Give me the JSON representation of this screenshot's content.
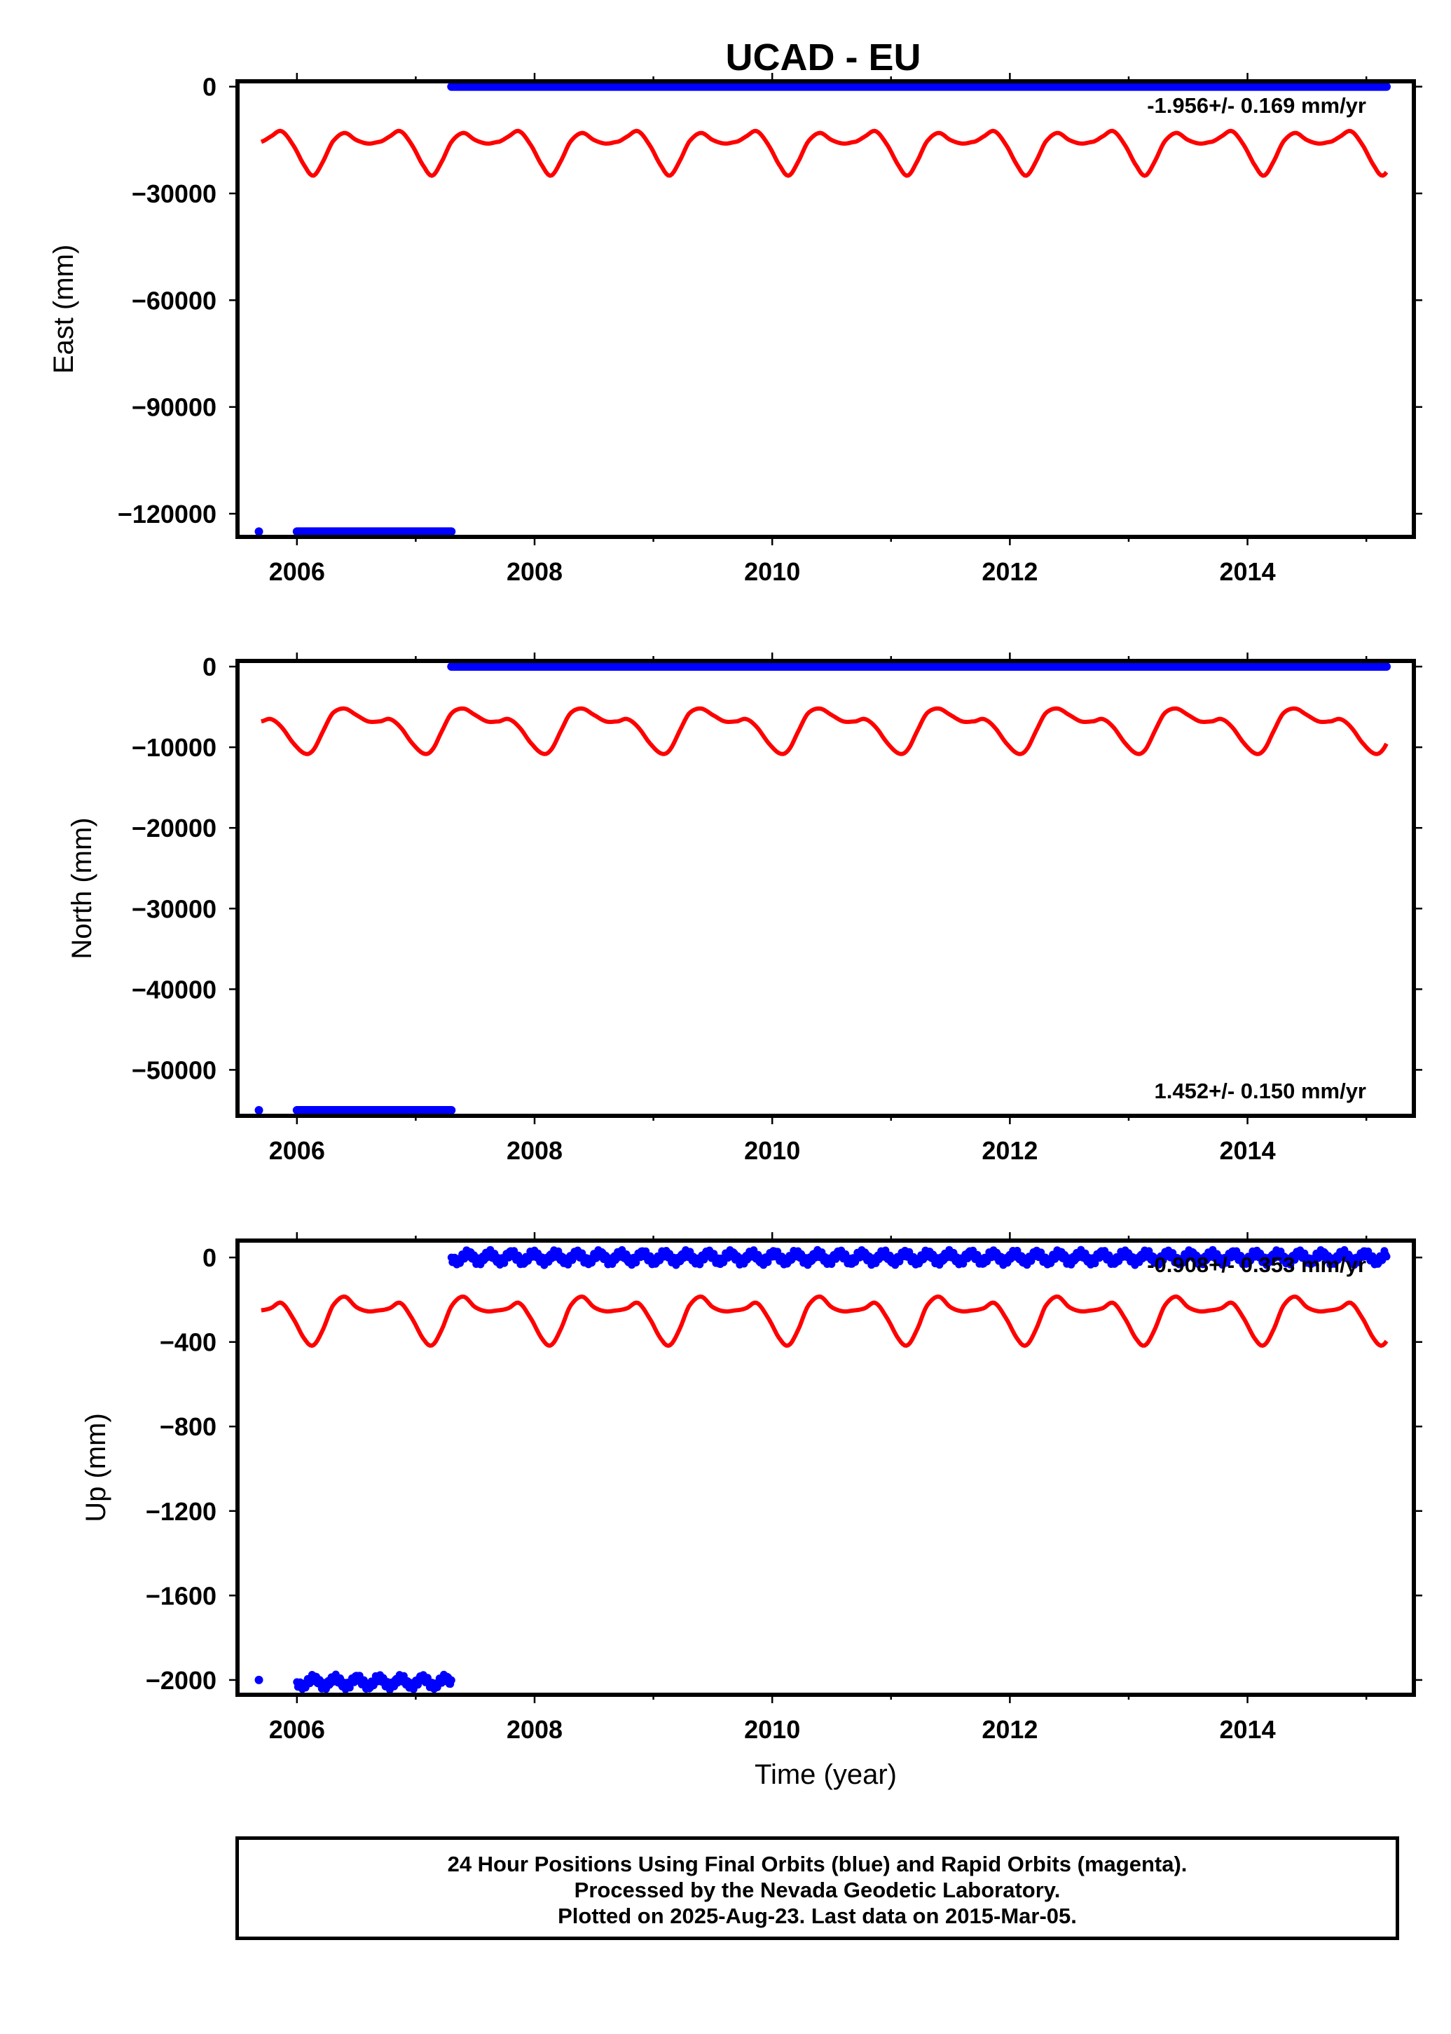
{
  "title": "UCAD - EU",
  "colors": {
    "final_orbits": "#0000ff",
    "model_fit": "#ff0000",
    "frame": "#000000"
  },
  "chart_data": [
    {
      "type": "scatter",
      "component": "East",
      "ylabel": "East (mm)",
      "xlabel": "",
      "xlim": [
        2005.5,
        2015.4
      ],
      "ylim": [
        -126500,
        1500
      ],
      "xticks": [
        2006,
        2008,
        2010,
        2012,
        2014
      ],
      "xtick_labels": [
        "2006",
        "2008",
        "2010",
        "2012",
        "2014"
      ],
      "yticks": [
        0,
        -30000,
        -60000,
        -90000,
        -120000
      ],
      "ytick_labels": [
        "0",
        "−30000",
        "−60000",
        "−90000",
        "−120000"
      ],
      "rate_text": "-1.956+/- 0.169 mm/yr",
      "rate_position": "top-right",
      "series": [
        {
          "segments": [
            {
              "x_start": 2005.68,
              "x_end": 2005.68,
              "y": -125000
            },
            {
              "x_start": 2006.0,
              "x_end": 2007.3,
              "y": -125000
            },
            {
              "x_start": 2007.3,
              "x_end": 2015.17,
              "y": 0
            }
          ]
        }
      ],
      "seasonal_model": {
        "x_start": 2005.7,
        "x_end": 2015.17,
        "phase_year": 2005.7,
        "points": [
          [
            0.0,
            -15500
          ],
          [
            0.08,
            -14000
          ],
          [
            0.17,
            -12500
          ],
          [
            0.27,
            -16500
          ],
          [
            0.37,
            -22500
          ],
          [
            0.44,
            -25000
          ],
          [
            0.52,
            -21000
          ],
          [
            0.6,
            -15500
          ],
          [
            0.7,
            -13000
          ],
          [
            0.8,
            -15000
          ],
          [
            0.9,
            -16000
          ],
          [
            1.0,
            -15500
          ]
        ]
      }
    },
    {
      "type": "scatter",
      "component": "North",
      "ylabel": "North (mm)",
      "xlabel": "",
      "xlim": [
        2005.5,
        2015.4
      ],
      "ylim": [
        -55700,
        700
      ],
      "xticks": [
        2006,
        2008,
        2010,
        2012,
        2014
      ],
      "xtick_labels": [
        "2006",
        "2008",
        "2010",
        "2012",
        "2014"
      ],
      "yticks": [
        0,
        -10000,
        -20000,
        -30000,
        -40000,
        -50000
      ],
      "ytick_labels": [
        "0",
        "−10000",
        "−20000",
        "−30000",
        "−40000",
        "−50000"
      ],
      "rate_text": "1.452+/- 0.150 mm/yr",
      "rate_position": "bottom-right",
      "series": [
        {
          "segments": [
            {
              "x_start": 2005.68,
              "x_end": 2005.68,
              "y": -55000
            },
            {
              "x_start": 2006.0,
              "x_end": 2007.3,
              "y": -55000
            },
            {
              "x_start": 2007.3,
              "x_end": 2015.17,
              "y": 0
            }
          ]
        }
      ],
      "seasonal_model": {
        "x_start": 2005.7,
        "x_end": 2015.17,
        "phase_year": 2005.7,
        "points": [
          [
            0.0,
            -6800
          ],
          [
            0.08,
            -6500
          ],
          [
            0.17,
            -7500
          ],
          [
            0.27,
            -9500
          ],
          [
            0.37,
            -10800
          ],
          [
            0.44,
            -10300
          ],
          [
            0.52,
            -8000
          ],
          [
            0.6,
            -5800
          ],
          [
            0.7,
            -5200
          ],
          [
            0.8,
            -6000
          ],
          [
            0.9,
            -6800
          ],
          [
            1.0,
            -6800
          ]
        ]
      }
    },
    {
      "type": "scatter",
      "component": "Up",
      "ylabel": "Up (mm)",
      "xlabel": "Time (year)",
      "xlim": [
        2005.5,
        2015.4
      ],
      "ylim": [
        -2070,
        80
      ],
      "xticks": [
        2006,
        2008,
        2010,
        2012,
        2014
      ],
      "xtick_labels": [
        "2006",
        "2008",
        "2010",
        "2012",
        "2014"
      ],
      "yticks": [
        0,
        -400,
        -800,
        -1200,
        -1600,
        -2000
      ],
      "ytick_labels": [
        "0",
        "−400",
        "−800",
        "−1200",
        "−1600",
        "−2000"
      ],
      "rate_text": "-0.908+/- 0.353 mm/yr",
      "rate_position": "top-right",
      "series": [
        {
          "segments": [
            {
              "x_start": 2005.68,
              "x_end": 2005.68,
              "y": -2000
            },
            {
              "x_start": 2006.0,
              "x_end": 2007.3,
              "y": -2010
            },
            {
              "x_start": 2007.3,
              "x_end": 2015.17,
              "y": 0
            }
          ]
        }
      ],
      "seasonal_model": {
        "x_start": 2005.7,
        "x_end": 2015.17,
        "phase_year": 2005.7,
        "points": [
          [
            0.0,
            -250
          ],
          [
            0.08,
            -240
          ],
          [
            0.17,
            -215
          ],
          [
            0.27,
            -290
          ],
          [
            0.37,
            -390
          ],
          [
            0.44,
            -415
          ],
          [
            0.52,
            -340
          ],
          [
            0.6,
            -230
          ],
          [
            0.7,
            -185
          ],
          [
            0.8,
            -235
          ],
          [
            0.9,
            -255
          ],
          [
            1.0,
            -250
          ]
        ]
      }
    }
  ],
  "footer": {
    "line1": "24 Hour Positions Using Final Orbits (blue) and Rapid Orbits (magenta).",
    "line2": "Processed by the Nevada Geodetic Laboratory.",
    "line3": "Plotted on 2025-Aug-23. Last data on 2015-Mar-05."
  }
}
